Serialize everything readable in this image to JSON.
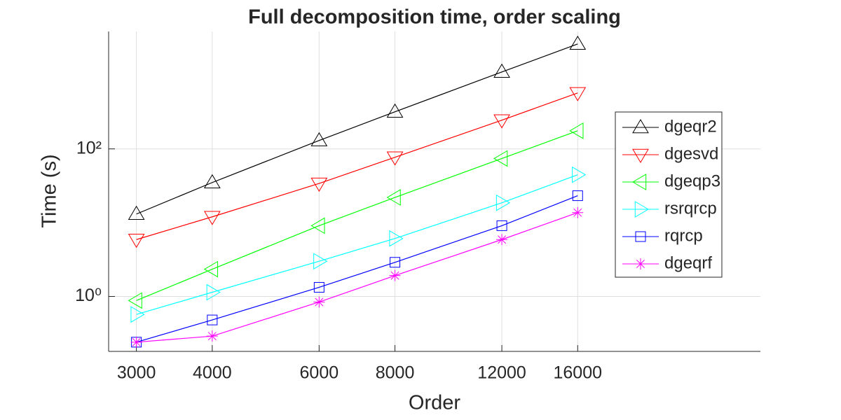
{
  "chart_data": {
    "type": "line",
    "title": "Full decomposition time, order scaling",
    "xlabel": "Order",
    "ylabel": "Time (s)",
    "x": [
      3000,
      4000,
      6000,
      8000,
      12000,
      16000
    ],
    "xscale": "log",
    "yscale": "log",
    "xlim": [
      2700,
      32000
    ],
    "ylim": [
      0.18,
      3900
    ],
    "xticks": [
      3000,
      4000,
      6000,
      8000,
      12000,
      16000
    ],
    "yticks": [
      {
        "value": 1,
        "label": "10⁰"
      },
      {
        "value": 100,
        "label": "10²"
      }
    ],
    "grid": true,
    "legend": "right",
    "series": [
      {
        "name": "dgeqr2",
        "color": "#000000",
        "marker": "triangle-up",
        "values": [
          13.1,
          35,
          130,
          318,
          1104,
          2640
        ]
      },
      {
        "name": "dgesvd",
        "color": "#ff0000",
        "marker": "triangle-down",
        "values": [
          5.9,
          12,
          34,
          77,
          245,
          573
        ]
      },
      {
        "name": "dgeqp3",
        "color": "#00ff00",
        "marker": "triangle-left",
        "values": [
          0.88,
          2.34,
          9.1,
          22,
          74,
          176
        ]
      },
      {
        "name": "rsrqrcp",
        "color": "#00ffff",
        "marker": "triangle-right",
        "values": [
          0.57,
          1.14,
          3.0,
          6.1,
          18.6,
          44.6
        ]
      },
      {
        "name": "rqrcp",
        "color": "#0000ff",
        "marker": "square",
        "values": [
          0.24,
          0.48,
          1.33,
          2.9,
          9.1,
          23.2
        ]
      },
      {
        "name": "dgeqrf",
        "color": "#ff00ff",
        "marker": "asterisk",
        "values": [
          0.24,
          0.29,
          0.84,
          1.92,
          5.9,
          13.7
        ]
      }
    ]
  }
}
